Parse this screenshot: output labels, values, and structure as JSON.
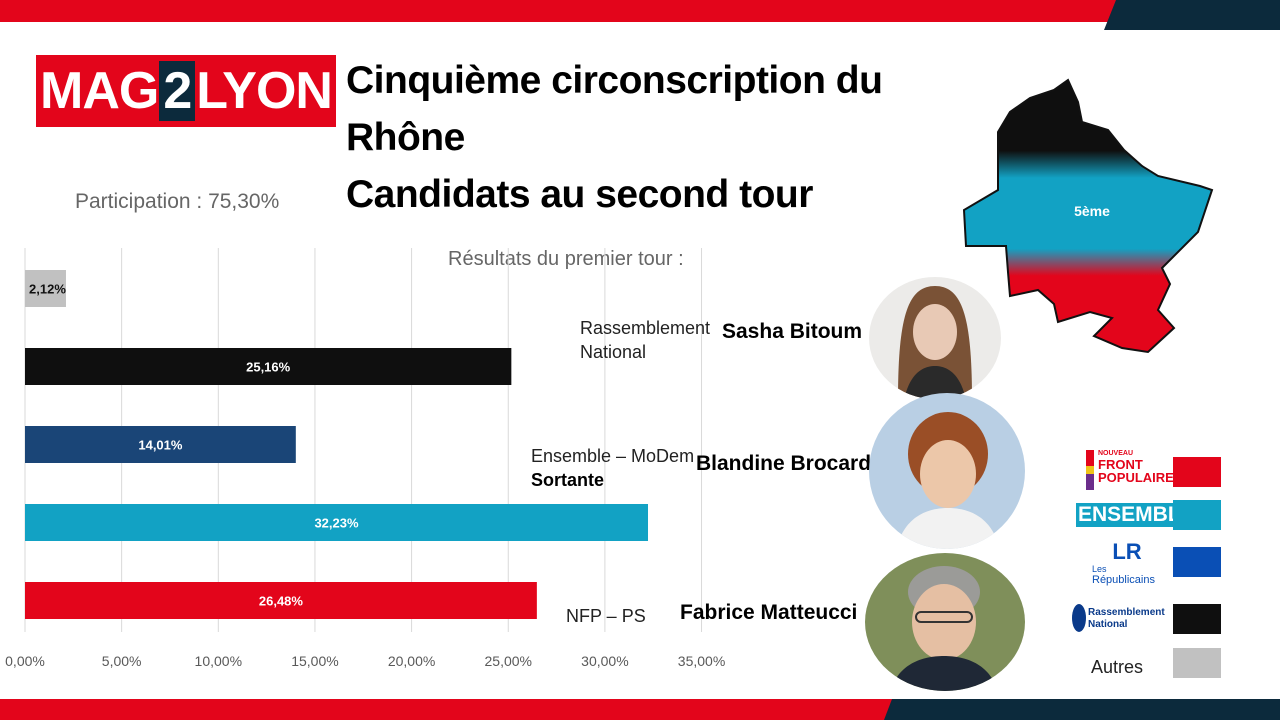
{
  "brand": {
    "name_left": "MAG",
    "name_mid": "2",
    "name_right": "LYON"
  },
  "title": {
    "line1": "Cinquième circonscription du",
    "line2": "Rhône",
    "line3": "Candidats au second tour"
  },
  "participation": "Participation : 75,30%",
  "results_label": "Résultats du premier tour :",
  "map": {
    "label": "5ème",
    "colors": [
      "#0f0f0f",
      "#12a2c4",
      "#e3051b"
    ]
  },
  "candidates": [
    {
      "party_line1": "Rassemblement",
      "party_line2": "National",
      "name": "Sasha Bitoum"
    },
    {
      "party_line1": "Ensemble – MoDem",
      "party_line2": "Sortante",
      "name": "Blandine Brocard"
    },
    {
      "party_line1": "NFP – PS",
      "party_line2": "",
      "name": "Fabrice Matteucci"
    }
  ],
  "legend": [
    {
      "label_line1": "NOUVEAU",
      "label_line2": "FRONT",
      "label_line3": "POPULAIRE",
      "color": "#e3051b"
    },
    {
      "label_line1": "ENSEMBLE",
      "color": "#12a2c4"
    },
    {
      "label_line1": "LR",
      "label_line2": "Les",
      "label_line3": "Républicains",
      "color": "#0a4fb5"
    },
    {
      "label_line1": "Rassemblement",
      "label_line2": "National",
      "color": "#0f0f0f"
    },
    {
      "label_line1": "Autres",
      "color": "#c1c1c1"
    }
  ],
  "chart_data": {
    "type": "bar",
    "orientation": "horizontal",
    "categories": [
      "Autres",
      "Rassemblement National",
      "Les Républicains",
      "Ensemble",
      "Nouveau Front Populaire"
    ],
    "values": [
      2.12,
      25.16,
      14.01,
      32.23,
      26.48
    ],
    "value_labels": [
      "2,12%",
      "25,16%",
      "14,01%",
      "32,23%",
      "26,48%"
    ],
    "colors": [
      "#c1c1c1",
      "#0f0f0f",
      "#1a4577",
      "#12a2c4",
      "#e3051b"
    ],
    "x_ticks": [
      "0,00%",
      "5,00%",
      "10,00%",
      "15,00%",
      "20,00%",
      "25,00%",
      "30,00%",
      "35,00%"
    ],
    "xlim": [
      0,
      35
    ],
    "grid": true,
    "title": "Résultats du premier tour :"
  }
}
